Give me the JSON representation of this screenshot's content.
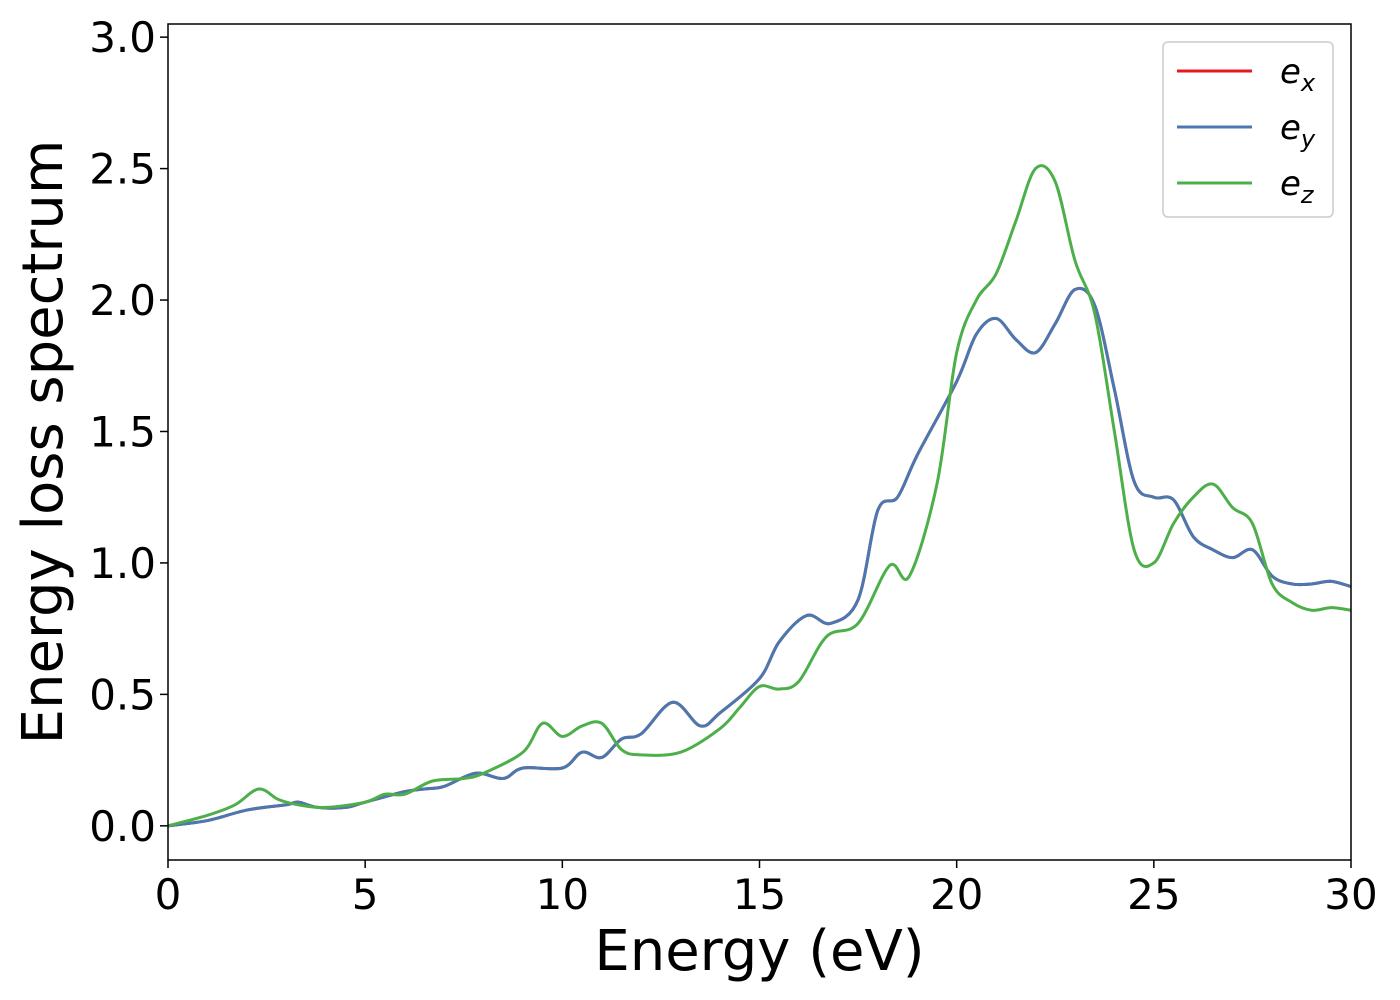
{
  "chart_data": {
    "type": "line",
    "title": "",
    "xlabel": "Energy (eV)",
    "ylabel": "Energy loss spectrum",
    "xlim": [
      0,
      30
    ],
    "ylim": [
      -0.13,
      3.05
    ],
    "xticks": [
      0,
      5,
      10,
      15,
      20,
      25,
      30
    ],
    "xtick_labels": [
      "0",
      "5",
      "10",
      "15",
      "20",
      "25",
      "30"
    ],
    "yticks": [
      0.0,
      0.5,
      1.0,
      1.5,
      2.0,
      2.5,
      3.0
    ],
    "ytick_labels": [
      "0.0",
      "0.5",
      "1.0",
      "1.5",
      "2.0",
      "2.5",
      "3.0"
    ],
    "grid": false,
    "legend_position": "top-right",
    "series": [
      {
        "name": "e_x",
        "legend_base": "e",
        "legend_sub": "x",
        "color": "#e41a1c",
        "x": [
          0,
          1,
          2,
          3,
          3.3,
          3.8,
          4.5,
          5,
          6,
          6.5,
          7,
          7.8,
          8.5,
          9,
          10,
          10.5,
          11,
          11.5,
          12,
          12.8,
          13.5,
          14,
          15,
          15.5,
          16.2,
          16.8,
          17.5,
          18,
          18.5,
          19,
          20,
          20.5,
          21,
          21.5,
          22,
          22.5,
          23,
          23.5,
          24,
          24.5,
          25,
          25.5,
          26,
          26.5,
          27,
          27.5,
          28,
          28.5,
          29,
          29.5,
          30
        ],
        "y": [
          0.0,
          0.02,
          0.06,
          0.08,
          0.09,
          0.07,
          0.07,
          0.09,
          0.13,
          0.14,
          0.15,
          0.2,
          0.18,
          0.22,
          0.22,
          0.28,
          0.26,
          0.33,
          0.35,
          0.47,
          0.38,
          0.43,
          0.56,
          0.7,
          0.8,
          0.77,
          0.86,
          1.2,
          1.25,
          1.41,
          1.69,
          1.87,
          1.93,
          1.85,
          1.8,
          1.91,
          2.04,
          1.98,
          1.66,
          1.31,
          1.25,
          1.24,
          1.1,
          1.05,
          1.02,
          1.05,
          0.95,
          0.92,
          0.92,
          0.93,
          0.91
        ]
      },
      {
        "name": "e_y",
        "legend_base": "e",
        "legend_sub": "y",
        "color": "#4a78b0",
        "x": [
          0,
          1,
          2,
          3,
          3.3,
          3.8,
          4.5,
          5,
          6,
          6.5,
          7,
          7.8,
          8.5,
          9,
          10,
          10.5,
          11,
          11.5,
          12,
          12.8,
          13.5,
          14,
          15,
          15.5,
          16.2,
          16.8,
          17.5,
          18,
          18.5,
          19,
          20,
          20.5,
          21,
          21.5,
          22,
          22.5,
          23,
          23.5,
          24,
          24.5,
          25,
          25.5,
          26,
          26.5,
          27,
          27.5,
          28,
          28.5,
          29,
          29.5,
          30
        ],
        "y": [
          0.0,
          0.02,
          0.06,
          0.08,
          0.09,
          0.07,
          0.07,
          0.09,
          0.13,
          0.14,
          0.15,
          0.2,
          0.18,
          0.22,
          0.22,
          0.28,
          0.26,
          0.33,
          0.35,
          0.47,
          0.38,
          0.43,
          0.56,
          0.7,
          0.8,
          0.77,
          0.86,
          1.2,
          1.25,
          1.41,
          1.69,
          1.87,
          1.93,
          1.85,
          1.8,
          1.91,
          2.04,
          1.98,
          1.66,
          1.31,
          1.25,
          1.24,
          1.1,
          1.05,
          1.02,
          1.05,
          0.95,
          0.92,
          0.92,
          0.93,
          0.91
        ]
      },
      {
        "name": "e_z",
        "legend_base": "e",
        "legend_sub": "z",
        "color": "#4daf4a",
        "x": [
          0,
          1,
          1.7,
          2.3,
          2.8,
          3.3,
          4,
          5,
          5.5,
          6,
          6.7,
          7.5,
          8,
          9,
          9.5,
          10,
          10.5,
          11,
          11.5,
          12,
          13,
          14,
          14.5,
          15,
          15.5,
          16,
          16.7,
          17.5,
          18.3,
          18.8,
          19.5,
          20,
          20.5,
          21,
          21.5,
          22,
          22.5,
          23,
          23.5,
          24,
          24.5,
          25,
          25.5,
          26,
          26.5,
          27,
          27.5,
          28,
          28.5,
          29,
          29.5,
          30
        ],
        "y": [
          0.0,
          0.04,
          0.08,
          0.14,
          0.1,
          0.08,
          0.07,
          0.09,
          0.12,
          0.12,
          0.17,
          0.18,
          0.2,
          0.28,
          0.39,
          0.34,
          0.38,
          0.39,
          0.29,
          0.27,
          0.28,
          0.37,
          0.45,
          0.53,
          0.52,
          0.55,
          0.72,
          0.77,
          0.99,
          0.95,
          1.3,
          1.8,
          2.0,
          2.1,
          2.3,
          2.5,
          2.45,
          2.15,
          1.95,
          1.5,
          1.05,
          1.0,
          1.15,
          1.25,
          1.3,
          1.21,
          1.15,
          0.92,
          0.85,
          0.82,
          0.83,
          0.82
        ]
      }
    ]
  }
}
